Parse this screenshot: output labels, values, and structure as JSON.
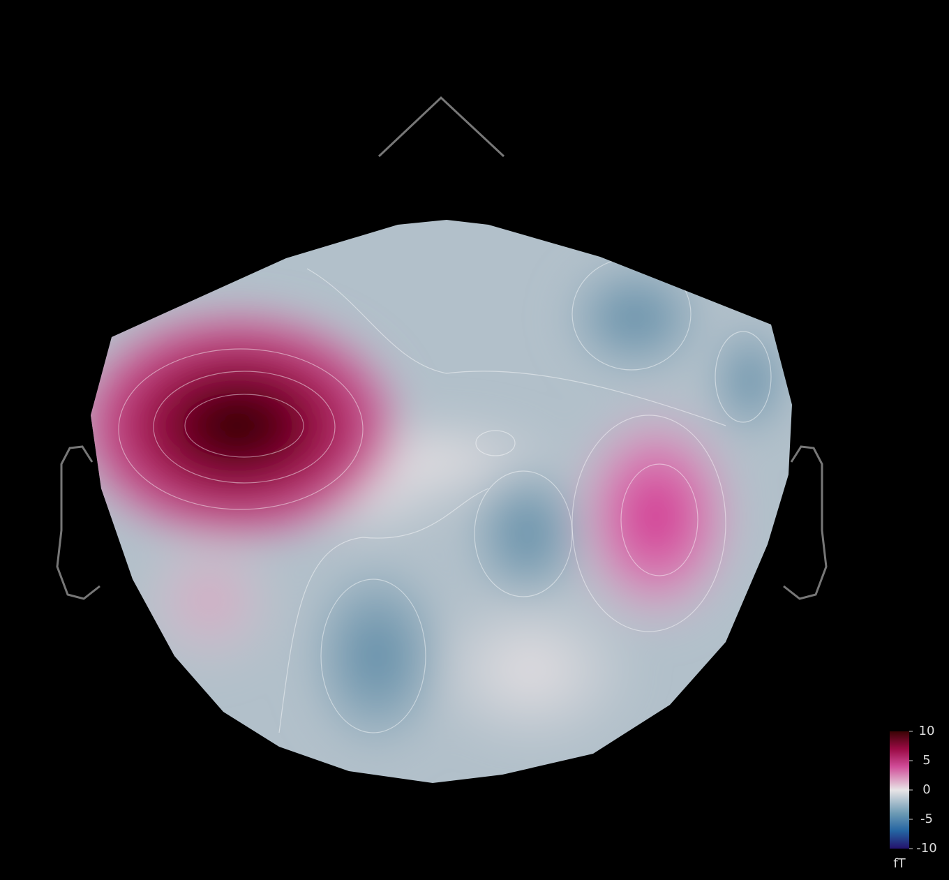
{
  "chart_data": {
    "type": "topomap",
    "clim": [
      -10,
      10
    ],
    "cticks": [
      10,
      5,
      0,
      -5,
      -10
    ],
    "colorbar_label": "fT"
  }
}
